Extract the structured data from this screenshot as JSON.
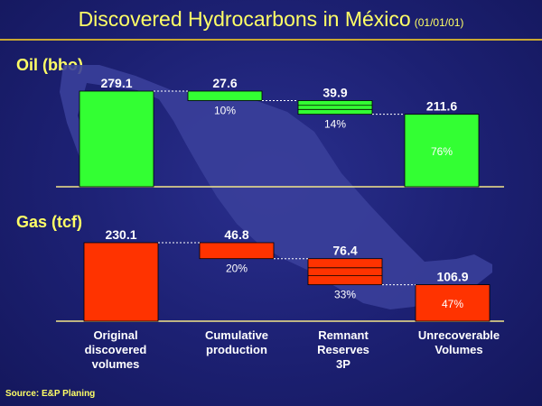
{
  "title": "Discovered Hydrocarbons in México",
  "title_date": "(01/01/01)",
  "source": "Source: E&P Planing",
  "colors": {
    "oil": "#33ff33",
    "gas": "#ff3300",
    "title": "#ffff66",
    "background": "#1c2072",
    "map": "#3a3f9a"
  },
  "chart_data": [
    {
      "type": "bar",
      "subtype": "waterfall",
      "title": "Oil (bbo)",
      "categories": [
        "Original discovered volumes",
        "Cumulative production",
        "Remnant Reserves 3P",
        "Unrecoverable Volumes"
      ],
      "values": [
        279.1,
        27.6,
        39.9,
        211.6
      ],
      "value_labels": [
        "279.1",
        "27.6",
        "39.9",
        "211.6"
      ],
      "percent_labels": [
        "",
        "10%",
        "14%",
        "76%"
      ]
    },
    {
      "type": "bar",
      "subtype": "waterfall",
      "title": "Gas (tcf)",
      "categories": [
        "Original discovered volumes",
        "Cumulative production",
        "Remnant Reserves 3P",
        "Unrecoverable Volumes"
      ],
      "values": [
        230.1,
        46.8,
        76.4,
        106.9
      ],
      "value_labels": [
        "230.1",
        "46.8",
        "76.4",
        "106.9"
      ],
      "percent_labels": [
        "",
        "20%",
        "33%",
        "47%"
      ]
    }
  ],
  "x_labels": [
    [
      "Original",
      "discovered",
      "volumes"
    ],
    [
      "Cumulative",
      "production"
    ],
    [
      "Remnant",
      "Reserves",
      "3P"
    ],
    [
      "Unrecoverable",
      "Volumes"
    ]
  ]
}
